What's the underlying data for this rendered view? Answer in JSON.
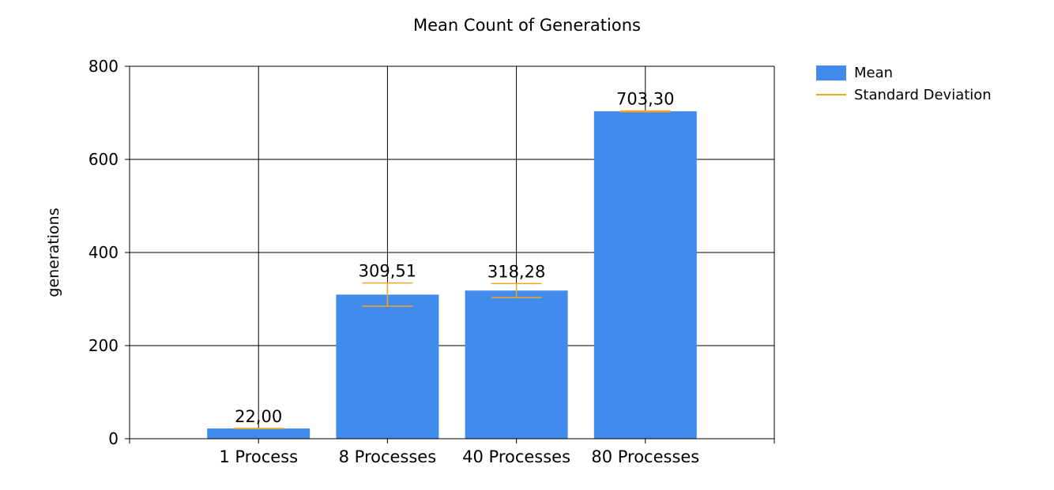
{
  "chart_data": {
    "type": "bar",
    "title": "Mean Count of Generations",
    "xlabel": "",
    "ylabel": "generations",
    "categories": [
      "1 Process",
      "8 Processes",
      "40 Processes",
      "80 Processes"
    ],
    "series": [
      {
        "name": "Mean",
        "values": [
          22.0,
          309.51,
          318.28,
          703.3
        ],
        "color": "#418bed"
      },
      {
        "name": "Standard Deviation",
        "values": [
          0,
          25,
          15,
          1
        ],
        "color": "#f5a623"
      }
    ],
    "data_labels": [
      "22,00",
      "309,51",
      "318,28",
      "703,30"
    ],
    "ylim": [
      0,
      800
    ],
    "yticks": [
      0,
      200,
      400,
      600,
      800
    ],
    "grid": true,
    "legend_position": "top-right"
  }
}
